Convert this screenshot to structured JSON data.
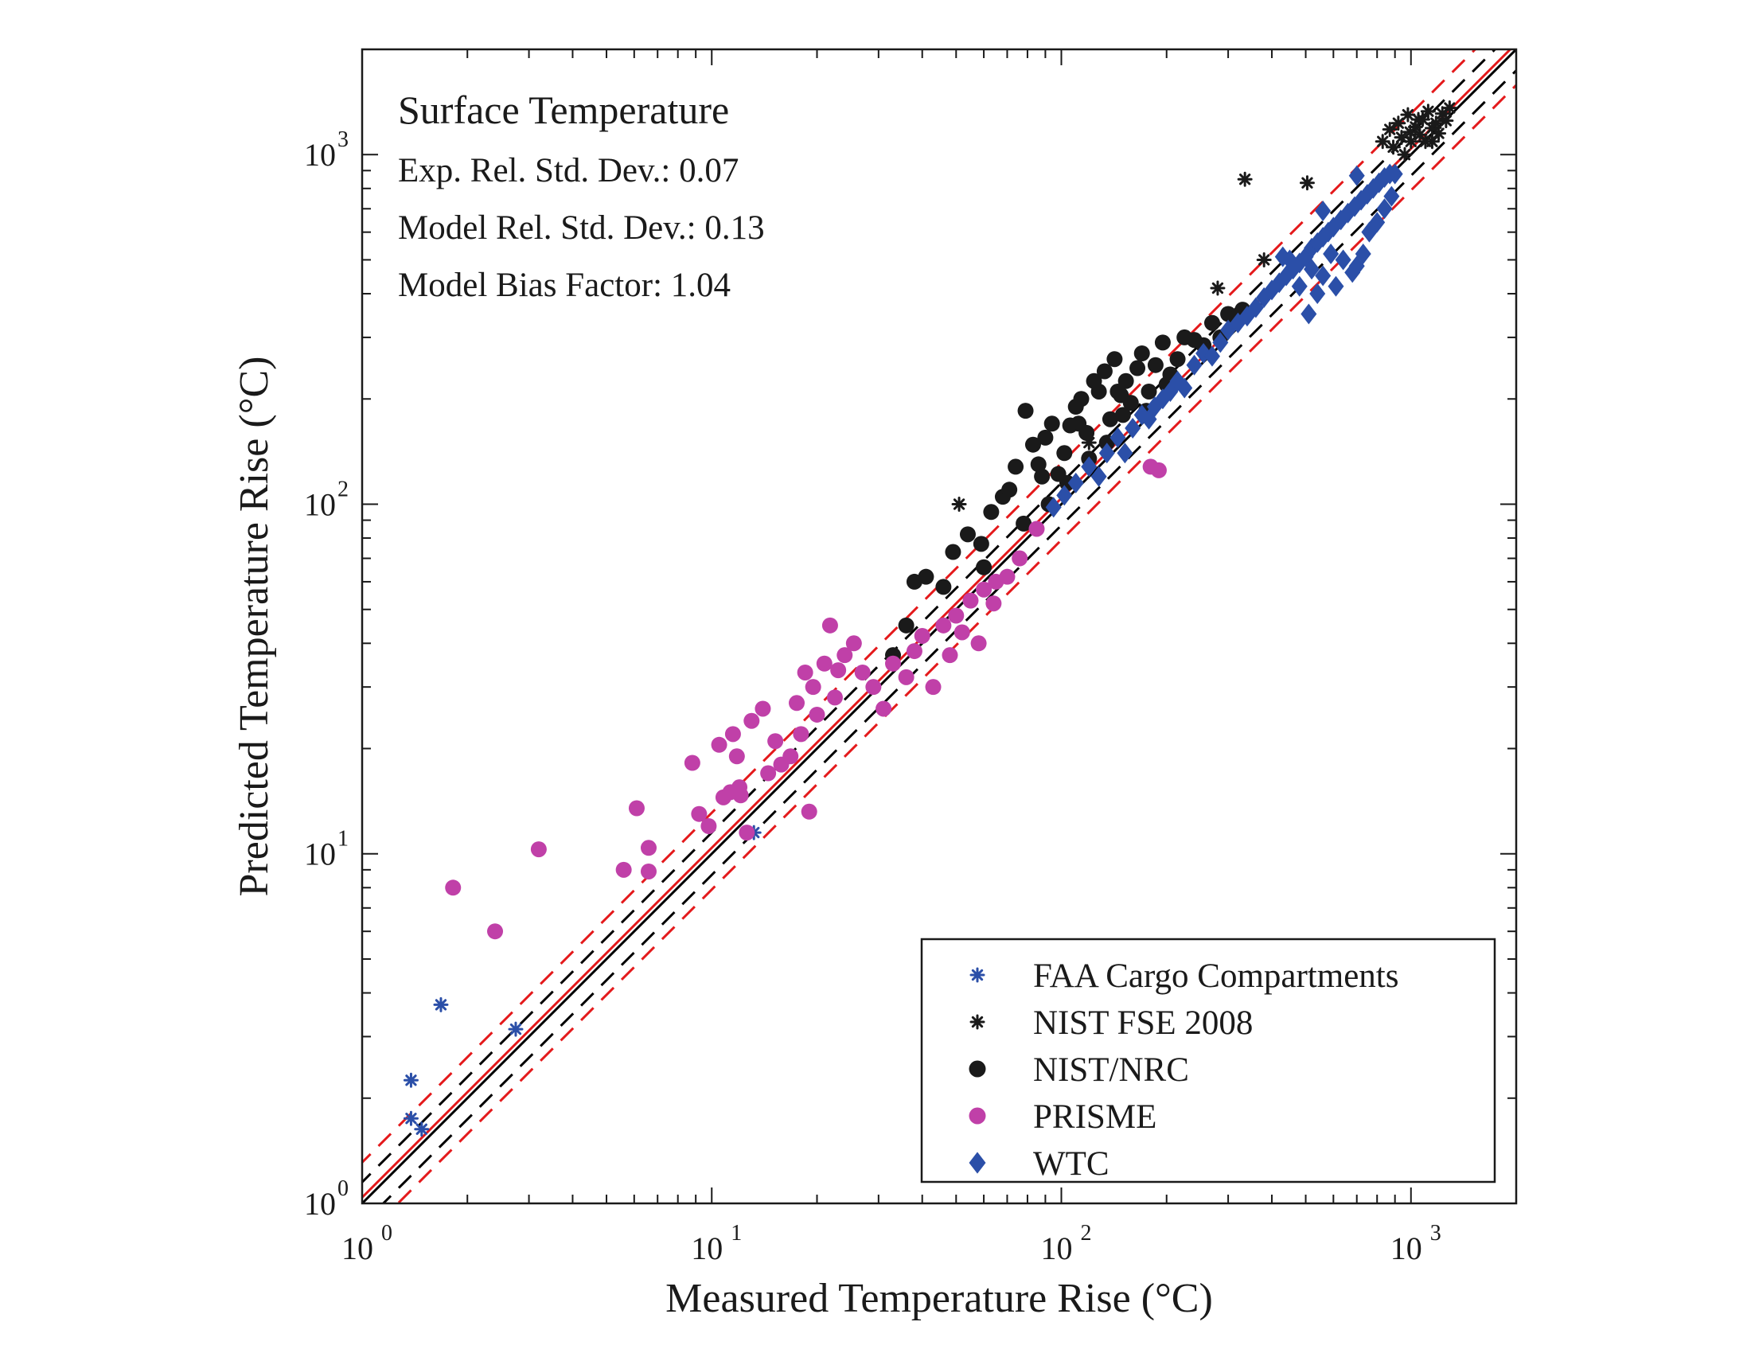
{
  "chart_data": {
    "type": "scatter",
    "title": "Surface Temperature",
    "stats": [
      "Exp. Rel. Std. Dev.: 0.07",
      "Model Rel. Std. Dev.: 0.13",
      "Model Bias Factor: 1.04"
    ],
    "xlabel": "Measured Temperature Rise (°C)",
    "ylabel": "Predicted Temperature Rise (°C)",
    "x_scale": "log",
    "y_scale": "log",
    "xlim": [
      1,
      2000
    ],
    "ylim": [
      1,
      2000
    ],
    "x_ticks": [
      {
        "value": 1,
        "base": "10",
        "exp": "0"
      },
      {
        "value": 10,
        "base": "10",
        "exp": "1"
      },
      {
        "value": 100,
        "base": "10",
        "exp": "2"
      },
      {
        "value": 1000,
        "base": "10",
        "exp": "3"
      }
    ],
    "y_ticks": [
      {
        "value": 1,
        "base": "10",
        "exp": "0"
      },
      {
        "value": 10,
        "base": "10",
        "exp": "1"
      },
      {
        "value": 100,
        "base": "10",
        "exp": "2"
      },
      {
        "value": 1000,
        "base": "10",
        "exp": "3"
      }
    ],
    "legend_position": "bottom-right",
    "reference_lines": [
      {
        "kind": "solid",
        "color": "#000000",
        "slope": 1.0
      },
      {
        "kind": "solid",
        "color": "#e41a1c",
        "slope": 1.04
      },
      {
        "kind": "dashed",
        "color": "#000000",
        "slope": 1.15
      },
      {
        "kind": "dashed",
        "color": "#000000",
        "slope": 0.87
      },
      {
        "kind": "dashed",
        "color": "#e41a1c",
        "slope": 1.31
      },
      {
        "kind": "dashed",
        "color": "#e41a1c",
        "slope": 0.79
      }
    ],
    "series": [
      {
        "name": "FAA Cargo Compartments",
        "marker": "asterisk",
        "color": "#2b4fa8",
        "points": [
          [
            1.38,
            2.25
          ],
          [
            1.38,
            1.75
          ],
          [
            1.48,
            1.63
          ],
          [
            1.68,
            3.7
          ],
          [
            2.75,
            3.15
          ],
          [
            13.2,
            11.5
          ]
        ]
      },
      {
        "name": "NIST FSE 2008",
        "marker": "asterisk",
        "color": "#1a1a1a",
        "points": [
          [
            51,
            100
          ],
          [
            120,
            150
          ],
          [
            280,
            415
          ],
          [
            335,
            850
          ],
          [
            380,
            500
          ],
          [
            505,
            830
          ],
          [
            830,
            1090
          ],
          [
            870,
            1180
          ],
          [
            890,
            1050
          ],
          [
            920,
            1230
          ],
          [
            940,
            1120
          ],
          [
            960,
            1000
          ],
          [
            980,
            1300
          ],
          [
            1000,
            1090
          ],
          [
            1030,
            1200
          ],
          [
            1060,
            1140
          ],
          [
            1080,
            1260
          ],
          [
            1100,
            1090
          ],
          [
            1120,
            1330
          ],
          [
            1150,
            1190
          ],
          [
            1180,
            1230
          ],
          [
            1200,
            1150
          ],
          [
            1230,
            1310
          ],
          [
            1260,
            1250
          ],
          [
            1290,
            1360
          ],
          [
            1150,
            1090
          ],
          [
            1050,
            1260
          ],
          [
            995,
            1160
          ]
        ]
      },
      {
        "name": "NIST/NRC",
        "marker": "circle",
        "color": "#1a1a1a",
        "points": [
          [
            33,
            37
          ],
          [
            36,
            45
          ],
          [
            38,
            60
          ],
          [
            41,
            62
          ],
          [
            46,
            58
          ],
          [
            49,
            73
          ],
          [
            54,
            82
          ],
          [
            59,
            77
          ],
          [
            63,
            95
          ],
          [
            68,
            105
          ],
          [
            71,
            110
          ],
          [
            74,
            128
          ],
          [
            79,
            185
          ],
          [
            83,
            148
          ],
          [
            86,
            130
          ],
          [
            90,
            155
          ],
          [
            94,
            170
          ],
          [
            98,
            122
          ],
          [
            102,
            140
          ],
          [
            106,
            168
          ],
          [
            110,
            190
          ],
          [
            114,
            200
          ],
          [
            118,
            160
          ],
          [
            124,
            225
          ],
          [
            128,
            210
          ],
          [
            133,
            240
          ],
          [
            138,
            175
          ],
          [
            142,
            260
          ],
          [
            148,
            205
          ],
          [
            153,
            225
          ],
          [
            158,
            195
          ],
          [
            165,
            245
          ],
          [
            170,
            270
          ],
          [
            178,
            210
          ],
          [
            186,
            250
          ],
          [
            195,
            290
          ],
          [
            205,
            235
          ],
          [
            215,
            260
          ],
          [
            225,
            300
          ],
          [
            240,
            295
          ],
          [
            255,
            285
          ],
          [
            270,
            330
          ],
          [
            285,
            300
          ],
          [
            300,
            350
          ],
          [
            315,
            340
          ],
          [
            330,
            360
          ],
          [
            78,
            88
          ],
          [
            92,
            100
          ],
          [
            104,
            115
          ],
          [
            120,
            135
          ],
          [
            135,
            150
          ],
          [
            150,
            180
          ],
          [
            175,
            185
          ],
          [
            60,
            66
          ],
          [
            88,
            120
          ],
          [
            112,
            170
          ],
          [
            145,
            210
          ],
          [
            200,
            220
          ]
        ]
      },
      {
        "name": "PRISME",
        "marker": "circle",
        "color": "#c040a8",
        "points": [
          [
            1.82,
            8.0
          ],
          [
            2.4,
            6.0
          ],
          [
            3.2,
            10.3
          ],
          [
            5.6,
            9.0
          ],
          [
            6.1,
            13.5
          ],
          [
            6.6,
            10.4
          ],
          [
            6.6,
            8.9
          ],
          [
            8.8,
            18.2
          ],
          [
            9.2,
            13.0
          ],
          [
            9.8,
            12.0
          ],
          [
            10.5,
            20.5
          ],
          [
            10.8,
            14.5
          ],
          [
            11.3,
            15.0
          ],
          [
            11.5,
            22.0
          ],
          [
            11.8,
            19.0
          ],
          [
            12.0,
            15.5
          ],
          [
            12.6,
            11.5
          ],
          [
            13.0,
            24.0
          ],
          [
            14.0,
            26.0
          ],
          [
            14.5,
            17.0
          ],
          [
            15.2,
            21.0
          ],
          [
            15.8,
            18.0
          ],
          [
            16.8,
            19.0
          ],
          [
            17.5,
            27.0
          ],
          [
            18.0,
            22.0
          ],
          [
            18.5,
            33.0
          ],
          [
            19.5,
            30.0
          ],
          [
            20.0,
            25.0
          ],
          [
            21.0,
            35.0
          ],
          [
            21.8,
            45.0
          ],
          [
            22.5,
            28.0
          ],
          [
            24.0,
            37.0
          ],
          [
            25.5,
            40.0
          ],
          [
            27.0,
            33.0
          ],
          [
            29.0,
            30.0
          ],
          [
            31.0,
            26.0
          ],
          [
            33.0,
            35.0
          ],
          [
            36.0,
            32.0
          ],
          [
            38.0,
            38.0
          ],
          [
            40.0,
            42.0
          ],
          [
            43.0,
            30.0
          ],
          [
            46.0,
            45.0
          ],
          [
            50.0,
            48.0
          ],
          [
            55.0,
            53.0
          ],
          [
            60.0,
            57.0
          ],
          [
            65.0,
            60.0
          ],
          [
            70.0,
            62.0
          ],
          [
            76.0,
            70.0
          ],
          [
            85.0,
            85.0
          ],
          [
            48.0,
            37.0
          ],
          [
            52.0,
            43.0
          ],
          [
            58.0,
            40.0
          ],
          [
            64.0,
            52.0
          ],
          [
            180.0,
            128.0
          ],
          [
            190.0,
            125.0
          ],
          [
            12.1,
            14.7
          ],
          [
            19.0,
            13.2
          ],
          [
            23.0,
            33.5
          ]
        ]
      },
      {
        "name": "WTC",
        "marker": "diamond",
        "color": "#2b4fa8",
        "points": [
          [
            95,
            98
          ],
          [
            102,
            106
          ],
          [
            110,
            115
          ],
          [
            120,
            128
          ],
          [
            128,
            120
          ],
          [
            135,
            140
          ],
          [
            145,
            155
          ],
          [
            152,
            140
          ],
          [
            160,
            165
          ],
          [
            170,
            180
          ],
          [
            178,
            175
          ],
          [
            185,
            190
          ],
          [
            195,
            200
          ],
          [
            205,
            210
          ],
          [
            215,
            225
          ],
          [
            225,
            215
          ],
          [
            240,
            250
          ],
          [
            255,
            270
          ],
          [
            270,
            265
          ],
          [
            285,
            290
          ],
          [
            300,
            315
          ],
          [
            320,
            330
          ],
          [
            340,
            345
          ],
          [
            360,
            365
          ],
          [
            380,
            390
          ],
          [
            400,
            410
          ],
          [
            420,
            430
          ],
          [
            440,
            450
          ],
          [
            460,
            470
          ],
          [
            480,
            490
          ],
          [
            500,
            510
          ],
          [
            520,
            540
          ],
          [
            540,
            560
          ],
          [
            560,
            580
          ],
          [
            580,
            600
          ],
          [
            600,
            620
          ],
          [
            630,
            650
          ],
          [
            660,
            680
          ],
          [
            690,
            710
          ],
          [
            720,
            740
          ],
          [
            750,
            770
          ],
          [
            780,
            800
          ],
          [
            810,
            830
          ],
          [
            840,
            860
          ],
          [
            870,
            880
          ],
          [
            900,
            880
          ],
          [
            450,
            500
          ],
          [
            480,
            420
          ],
          [
            510,
            350
          ],
          [
            520,
            470
          ],
          [
            540,
            400
          ],
          [
            560,
            450
          ],
          [
            590,
            520
          ],
          [
            610,
            420
          ],
          [
            640,
            500
          ],
          [
            680,
            460
          ],
          [
            700,
            480
          ],
          [
            730,
            520
          ],
          [
            760,
            600
          ],
          [
            800,
            640
          ],
          [
            840,
            700
          ],
          [
            880,
            760
          ],
          [
            430,
            510
          ],
          [
            560,
            690
          ],
          [
            700,
            870
          ]
        ]
      }
    ]
  }
}
